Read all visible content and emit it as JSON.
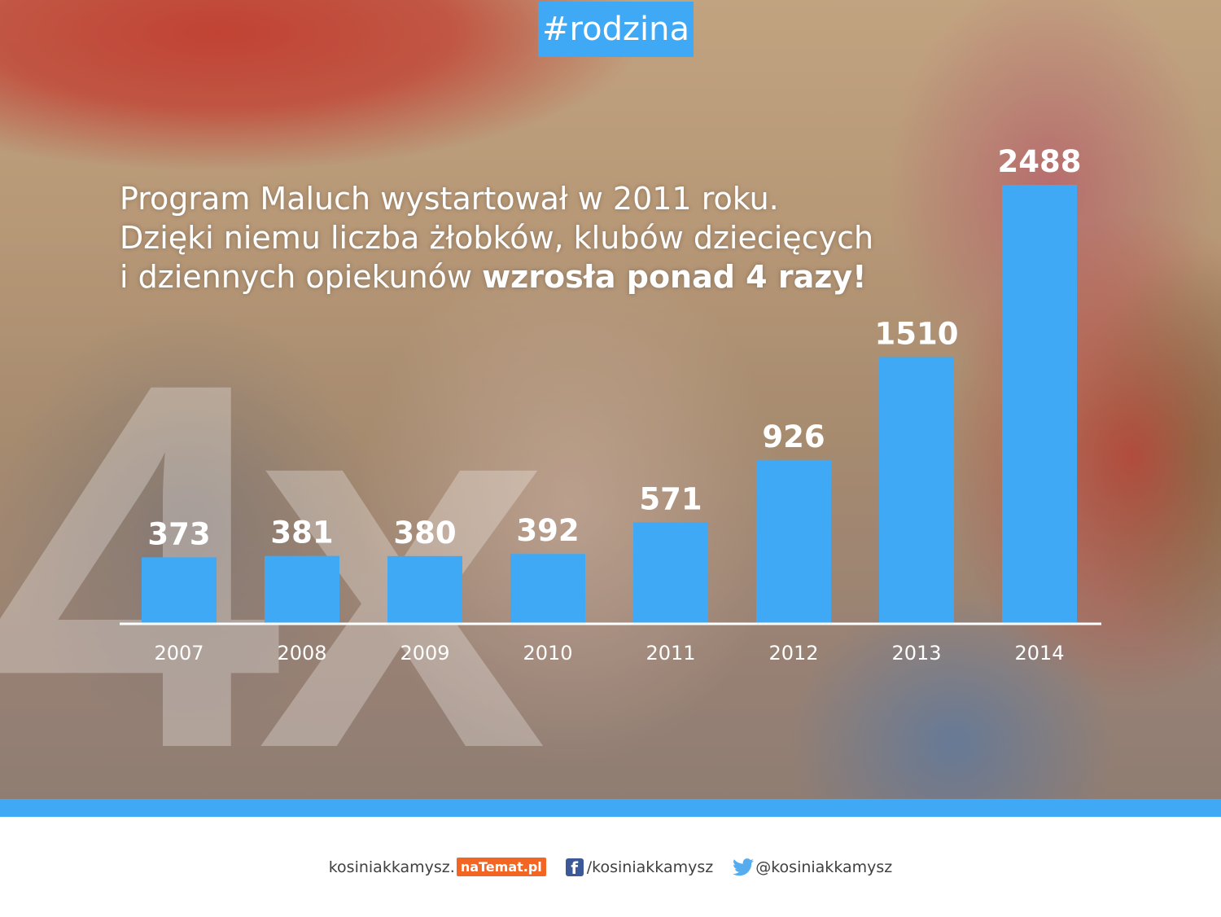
{
  "hashtag": "#rodzina",
  "headline": {
    "line1": "Program Maluch wystartował w 2011 roku.",
    "line2": "Dzięki niemu liczba żłobków, klubów dziecięcych",
    "line3_regular": "i dziennych opiekunów ",
    "line3_bold": "wzrosła ponad 4 razy!"
  },
  "watermark": "4x",
  "colors": {
    "accent": "#3fa9f5",
    "bar": "#3fa9f5",
    "text": "#ffffff",
    "brand_orange": "#f26522",
    "facebook": "#3b5998",
    "twitter": "#55acee"
  },
  "chart_data": {
    "type": "bar",
    "categories": [
      "2007",
      "2008",
      "2009",
      "2010",
      "2011",
      "2012",
      "2013",
      "2014"
    ],
    "values": [
      373,
      381,
      380,
      392,
      571,
      926,
      1510,
      2488
    ],
    "title": "",
    "xlabel": "",
    "ylabel": "",
    "ylim": [
      0,
      2488
    ],
    "grid": false,
    "data_labels": true
  },
  "footer": {
    "site": "kosiniakkamysz.",
    "site_logo": "naTemat.pl",
    "facebook_icon": "facebook-icon",
    "facebook": "/kosiniakkamysz",
    "twitter_icon": "twitter-icon",
    "twitter": "@kosiniakkamysz"
  }
}
